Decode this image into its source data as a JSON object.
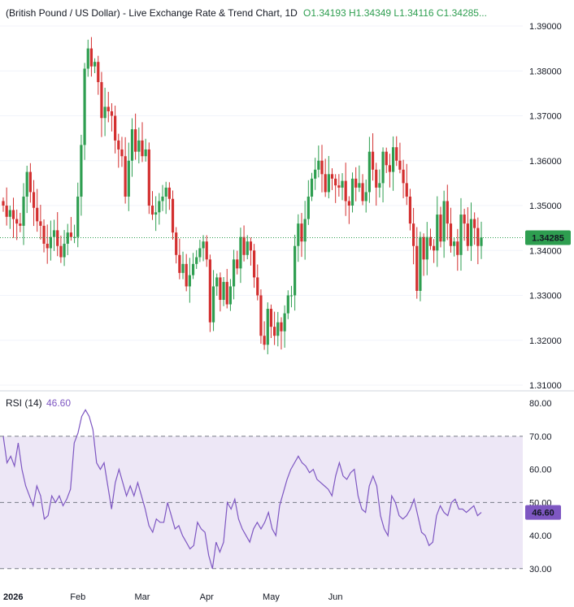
{
  "header": {
    "title": "(British Pound / US Dollar) - Live Exchange Rate & Trend Chart, 1D",
    "ohlc": "O1.34193  H1.34349  L1.34116  C1.34285..."
  },
  "rsi_header": {
    "label": "RSI (14)",
    "value": "46.60"
  },
  "last_price_label": "1.34285",
  "rsi_last_label": "46.60",
  "colors": {
    "up": "#26a69a",
    "up_body": "#2e9e50",
    "down": "#d32f2f",
    "rsi_line": "#7e57c2",
    "rsi_band": "#ede7f6",
    "text": "#131722"
  },
  "chart_data": [
    {
      "type": "candlestick",
      "title": "(British Pound / US Dollar) - Live Exchange Rate & Trend Chart, 1D",
      "ylim": [
        1.31,
        1.39
      ],
      "yticks": [
        "1.39000",
        "1.38000",
        "1.37000",
        "1.36000",
        "1.35000",
        "1.34000",
        "1.33000",
        "1.32000",
        "1.31000"
      ],
      "last_price": 1.34285,
      "x_labels": [
        "2026",
        "Feb",
        "Mar",
        "Apr",
        "May",
        "Jun"
      ],
      "closes": [
        1.35,
        1.3475,
        1.349,
        1.347,
        1.346,
        1.3455,
        1.352,
        1.3575,
        1.353,
        1.3495,
        1.3465,
        1.3455,
        1.3415,
        1.3405,
        1.343,
        1.3445,
        1.341,
        1.3385,
        1.3415,
        1.344,
        1.343,
        1.343,
        1.352,
        1.3635,
        1.3805,
        1.385,
        1.381,
        1.382,
        1.3775,
        1.3695,
        1.372,
        1.371,
        1.37,
        1.3645,
        1.3625,
        1.361,
        1.352,
        1.36,
        1.367,
        1.362,
        1.3645,
        1.361,
        1.3625,
        1.35,
        1.348,
        1.3485,
        1.351,
        1.352,
        1.354,
        1.3515,
        1.344,
        1.339,
        1.335,
        1.337,
        1.332,
        1.3345,
        1.337,
        1.3385,
        1.3405,
        1.342,
        1.338,
        1.324,
        1.332,
        1.334,
        1.329,
        1.333,
        1.328,
        1.332,
        1.338,
        1.336,
        1.343,
        1.339,
        1.342,
        1.34,
        1.334,
        1.33,
        1.321,
        1.319,
        1.327,
        1.323,
        1.321,
        1.324,
        1.322,
        1.326,
        1.33,
        1.33,
        1.341,
        1.346,
        1.342,
        1.347,
        1.352,
        1.356,
        1.358,
        1.36,
        1.357,
        1.353,
        1.357,
        1.356,
        1.3545,
        1.354,
        1.3555,
        1.351,
        1.35,
        1.356,
        1.354,
        1.355,
        1.351,
        1.353,
        1.362,
        1.358,
        1.354,
        1.355,
        1.362,
        1.359,
        1.3575,
        1.363,
        1.36,
        1.358,
        1.355,
        1.352,
        1.346,
        1.341,
        1.331,
        1.343,
        1.338,
        1.343,
        1.341,
        1.34,
        1.348,
        1.342,
        1.351,
        1.346,
        1.341,
        1.342,
        1.339,
        1.348,
        1.346,
        1.341,
        1.347,
        1.345,
        1.341,
        1.3429
      ]
    },
    {
      "type": "line",
      "title": "RSI (14)",
      "ylim": [
        27,
        83
      ],
      "yticks": [
        "80.00",
        "70.00",
        "60.00",
        "50.00",
        "40.00",
        "30.00"
      ],
      "band": [
        30,
        70
      ],
      "midline": 50,
      "x_labels": [
        "2026",
        "Feb",
        "Mar",
        "Apr",
        "May",
        "Jun"
      ],
      "series": [
        {
          "name": "RSI (14)",
          "values": [
            70,
            62,
            64,
            61,
            68,
            60,
            55,
            52,
            49,
            55,
            52,
            45,
            46,
            52,
            50,
            52,
            49,
            51,
            54,
            68,
            71,
            76,
            78,
            76,
            72,
            62,
            60,
            62,
            55,
            48,
            56,
            60,
            56,
            52,
            55,
            52,
            56,
            52,
            48,
            43,
            41,
            45,
            44,
            44,
            50,
            46,
            42,
            43,
            40,
            38,
            36,
            37,
            44,
            42,
            41,
            34,
            30,
            38,
            35,
            38,
            50,
            48,
            51,
            45,
            42,
            40,
            38,
            42,
            44,
            42,
            44,
            47,
            42,
            40,
            49,
            53,
            57,
            60,
            62,
            64,
            62,
            61,
            59,
            60,
            57,
            56,
            55,
            54,
            52,
            58,
            62,
            58,
            57,
            59,
            60,
            52,
            48,
            47,
            55,
            58,
            55,
            46,
            42,
            40,
            52,
            50,
            46,
            45,
            46,
            48,
            51,
            46,
            41,
            40,
            37,
            38,
            46,
            49,
            47,
            46,
            50,
            51,
            48,
            48,
            47,
            48,
            49,
            46,
            47
          ]
        }
      ]
    }
  ]
}
